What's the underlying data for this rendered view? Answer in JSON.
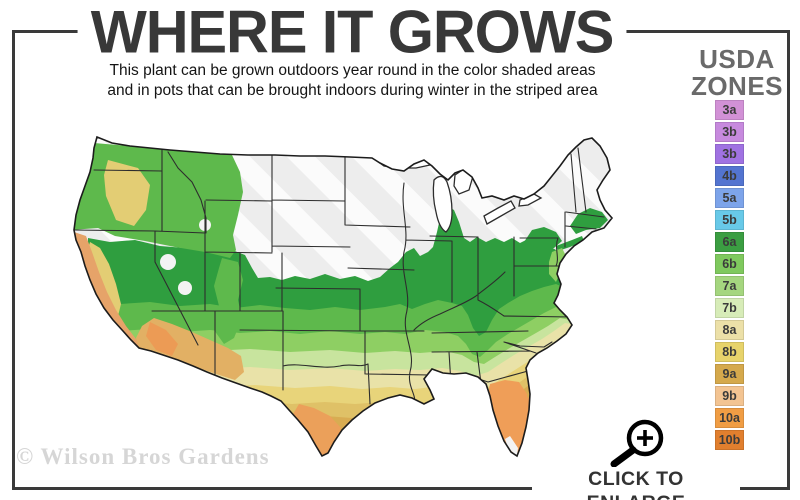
{
  "header": {
    "title": "WHERE IT GROWS",
    "subtitle_line1": "This plant can be grown outdoors year round in the color shaded areas",
    "subtitle_line2": "and in pots that can be brought indoors during winter in the striped area"
  },
  "legend": {
    "title_line1": "USDA",
    "title_line2": "ZONES",
    "zones": [
      {
        "label": "3a",
        "color": "#d291d6"
      },
      {
        "label": "3b",
        "color": "#c78ade"
      },
      {
        "label": "3b",
        "color": "#a072e2"
      },
      {
        "label": "4b",
        "color": "#5374d0"
      },
      {
        "label": "5a",
        "color": "#7da4ea"
      },
      {
        "label": "5b",
        "color": "#68c9e8"
      },
      {
        "label": "6a",
        "color": "#3b9e42"
      },
      {
        "label": "6b",
        "color": "#7fc95e"
      },
      {
        "label": "7a",
        "color": "#a5d67f"
      },
      {
        "label": "7b",
        "color": "#d7ecb8"
      },
      {
        "label": "8a",
        "color": "#ece0a8"
      },
      {
        "label": "8b",
        "color": "#e7d36b"
      },
      {
        "label": "9a",
        "color": "#d5a94c"
      },
      {
        "label": "9b",
        "color": "#f3c492"
      },
      {
        "label": "10a",
        "color": "#f09d44"
      },
      {
        "label": "10b",
        "color": "#e17f2e"
      }
    ]
  },
  "map": {
    "colors": {
      "striped_base": "#ededed",
      "stripe_highlight": "#fbfbfb",
      "state_border": "#2d2d2d",
      "outline": "#1c1c1c",
      "zone_dark_green": "#2f9e3f",
      "zone_medium_green": "#5eb94c",
      "zone_light_green": "#8ecf63",
      "zone_pale_green": "#c8e49e",
      "zone_pale_yellow": "#e9e2a8",
      "zone_yellow": "#e8d47a",
      "zone_tan": "#dfc167",
      "zone_gold": "#d8ac52",
      "zone_orange": "#eba05a",
      "coast_orange": "#e6a369",
      "valley_yellow": "#e3cd74",
      "desert_tan": "#e2b064",
      "desert_orange": "#ec9b55",
      "florida_orange": "#ef9e58",
      "water_white": "#ffffff",
      "patch_white": "#f3f3f3"
    }
  },
  "footer": {
    "watermark": "© Wilson Bros Gardens",
    "enlarge_label": "CLICK TO ENLARGE",
    "enlarge_icon": "magnifier-plus"
  }
}
